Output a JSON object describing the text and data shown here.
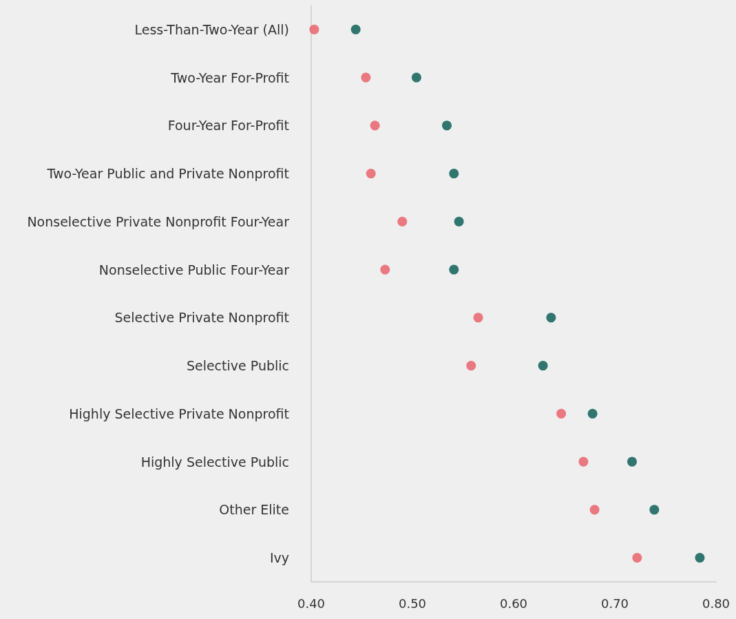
{
  "chart_data": {
    "type": "scatter",
    "categories": [
      "Less-Than-Two-Year (All)",
      "Two-Year For-Profit",
      "Four-Year For-Profit",
      "Two-Year Public and Private Nonprofit",
      "Nonselective Private Nonprofit Four-Year",
      "Nonselective Public Four-Year",
      "Selective Private Nonprofit",
      "Selective Public",
      "Highly Selective Private Nonprofit",
      "Highly Selective Public",
      "Other Elite",
      "Ivy"
    ],
    "orientation": "horizontal",
    "series": [
      {
        "color": "#e85a64",
        "values": [
          0.403,
          0.454,
          0.463,
          0.459,
          0.49,
          0.473,
          0.565,
          0.558,
          0.647,
          0.669,
          0.68,
          0.722
        ]
      },
      {
        "color": "#00574f",
        "values": [
          0.444,
          0.504,
          0.534,
          0.541,
          0.546,
          0.541,
          0.637,
          0.629,
          0.678,
          0.717,
          0.739,
          0.784
        ]
      }
    ],
    "xlim": [
      0.4,
      0.8
    ],
    "xticks": [
      {
        "value": 0.4,
        "label": "0.40"
      },
      {
        "value": 0.5,
        "label": "0.50"
      },
      {
        "value": 0.6,
        "label": "0.60"
      },
      {
        "value": 0.7,
        "label": "0.70"
      },
      {
        "value": 0.8,
        "label": "0.80"
      }
    ],
    "marker": "circle",
    "grid": false
  }
}
